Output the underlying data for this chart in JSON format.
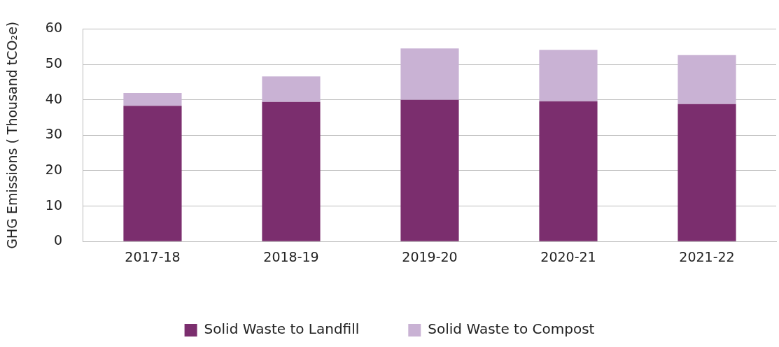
{
  "chart_data": {
    "type": "bar",
    "ylabel": "GHG Emissions ( Thousand tCO₂e)",
    "categories": [
      "2017-18",
      "2018-19",
      "2019-20",
      "2020-21",
      "2021-22"
    ],
    "stacked": true,
    "series": [
      {
        "name": "Solid Waste to Landfill",
        "color": "#7b2e6e",
        "values": [
          38.3,
          39.4,
          40.0,
          39.6,
          38.8
        ]
      },
      {
        "name": "Solid Waste to Compost",
        "color": "#c9b2d4",
        "values": [
          3.6,
          7.2,
          14.5,
          14.5,
          13.8
        ]
      }
    ],
    "ylim": [
      0,
      60
    ],
    "yticks": [
      0,
      10,
      20,
      30,
      40,
      50,
      60
    ],
    "grid": "y",
    "legend": "bottom"
  }
}
